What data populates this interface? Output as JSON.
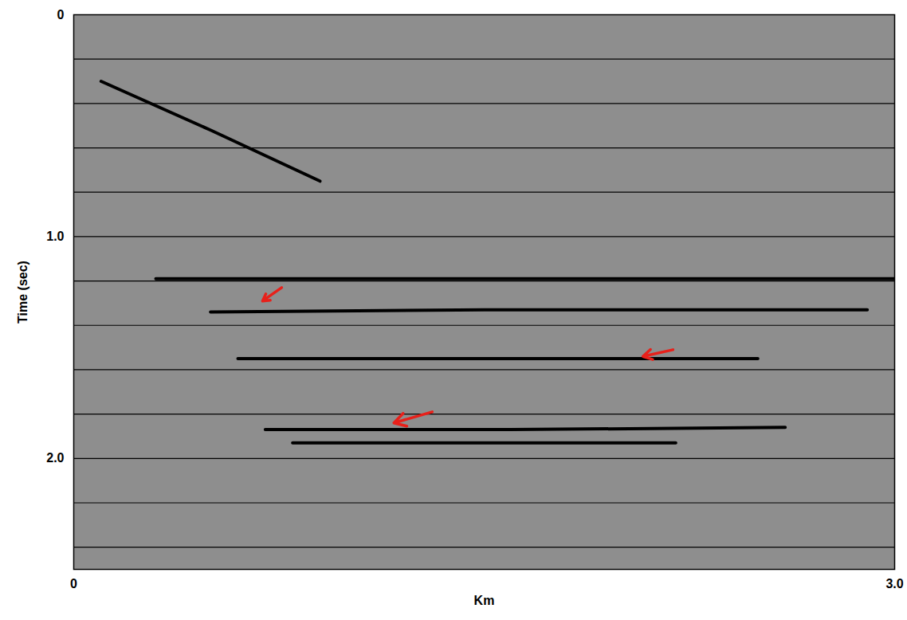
{
  "chart_data": {
    "type": "seismic_section",
    "xlabel": "Km",
    "ylabel": "Time (sec)",
    "xlim": [
      0,
      3
    ],
    "xticks": [
      0,
      {
        "value": 3,
        "label": "3.0"
      }
    ],
    "ylim": [
      0,
      2.5
    ],
    "yticks": [
      0,
      {
        "value": 1,
        "label": "1.0"
      },
      {
        "value": 2,
        "label": "2.0"
      }
    ],
    "timing_lines": [
      0.2,
      0.4,
      0.6,
      0.8,
      1.0,
      1.2,
      1.4,
      1.6,
      1.8,
      2.0,
      2.2,
      2.4
    ],
    "horizons": [
      {
        "x": [
          0.1,
          0.5,
          0.9
        ],
        "y": [
          0.3,
          0.52,
          0.75
        ]
      },
      {
        "x": [
          0.3,
          1.0,
          2.0,
          3.0
        ],
        "y": [
          1.19,
          1.19,
          1.19,
          1.19
        ]
      },
      {
        "x": [
          0.5,
          1.5,
          2.5,
          2.9
        ],
        "y": [
          1.34,
          1.33,
          1.33,
          1.33
        ]
      },
      {
        "x": [
          0.6,
          1.5,
          2.5
        ],
        "y": [
          1.55,
          1.55,
          1.55
        ]
      },
      {
        "x": [
          0.7,
          1.6,
          2.6
        ],
        "y": [
          1.87,
          1.87,
          1.86
        ]
      },
      {
        "x": [
          0.8,
          1.5,
          2.2
        ],
        "y": [
          1.93,
          1.93,
          1.93
        ]
      }
    ],
    "arrows": [
      {
        "x1": 0.76,
        "y1": 1.23,
        "x2": 0.69,
        "y2": 1.29
      },
      {
        "x1": 2.19,
        "y1": 1.51,
        "x2": 2.08,
        "y2": 1.54
      },
      {
        "x1": 1.31,
        "y1": 1.79,
        "x2": 1.17,
        "y2": 1.84
      }
    ],
    "color": "#e8201a"
  }
}
